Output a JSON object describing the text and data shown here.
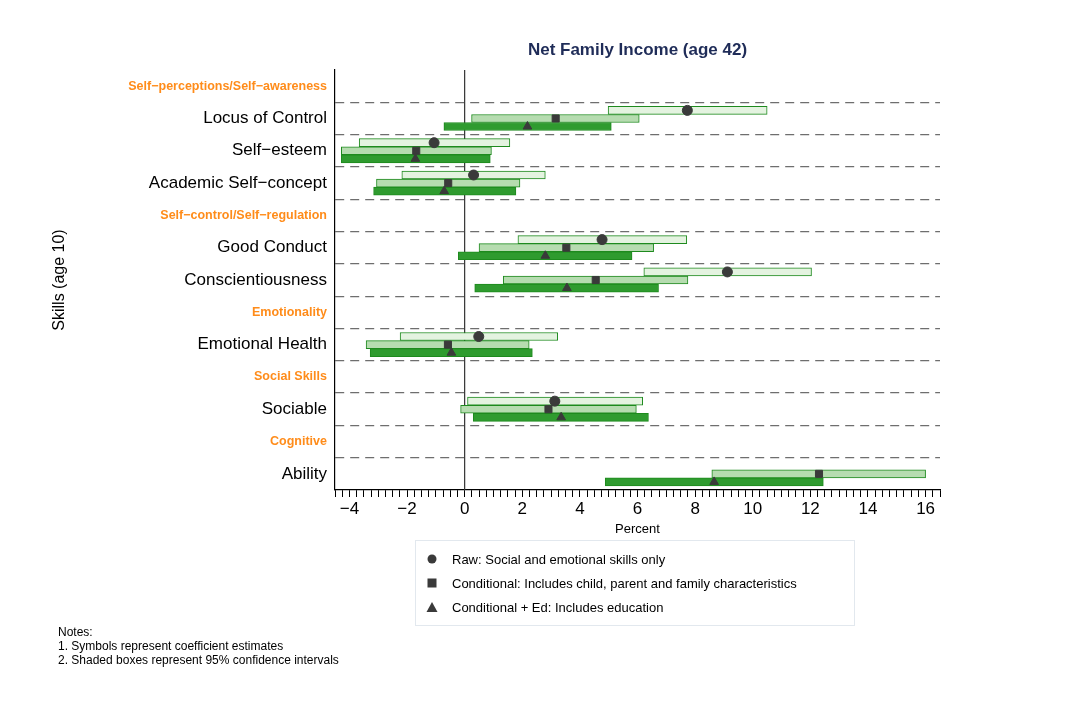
{
  "chart_data": {
    "type": "bar",
    "orientation": "horizontal",
    "title": "Net Family Income (age 42)",
    "xlabel": "Percent",
    "ylabel": "Skills (age 10)",
    "categories": [
      "Self−perceptions/Self−awareness",
      "Locus of Control",
      "Self−esteem",
      "Academic Self−concept",
      "Self−control/Self−regulation",
      "Good Conduct",
      "Conscientiousness",
      "Emotionality",
      "Emotional Health",
      "Social Skills",
      "Sociable",
      "Cognitive",
      "Ability"
    ],
    "series": [
      {
        "type": "bar",
        "color": "#e4f3e0",
        "base": [
          null,
          4.98,
          -3.66,
          -2.18,
          null,
          1.85,
          6.22,
          null,
          -2.24,
          null,
          0.1,
          null,
          null
        ],
        "values": [
          null,
          5.52,
          5.23,
          4.98,
          null,
          5.86,
          5.82,
          null,
          5.47,
          null,
          6.08,
          null,
          null
        ]
      },
      {
        "type": "bar",
        "color": "#b6dcb0",
        "base": [
          null,
          0.24,
          -4.28,
          -3.06,
          null,
          0.5,
          1.34,
          null,
          -3.42,
          null,
          -0.14,
          null,
          8.58
        ],
        "values": [
          null,
          5.82,
          5.21,
          4.98,
          null,
          6.06,
          6.41,
          null,
          5.66,
          null,
          6.1,
          null,
          7.42
        ]
      },
      {
        "type": "bar",
        "color": "#2f9b2f",
        "base": [
          null,
          -0.72,
          -4.28,
          -3.16,
          null,
          -0.22,
          0.35,
          null,
          -3.28,
          null,
          0.3,
          null,
          4.88
        ],
        "values": [
          null,
          5.81,
          5.17,
          4.94,
          null,
          6.03,
          6.38,
          null,
          5.63,
          null,
          6.08,
          null,
          7.57
        ]
      },
      {
        "type": "scatter",
        "name": "Raw: Social and emotional skills only",
        "color": "#3a3a3a",
        "marker": "circle",
        "values": [
          null,
          7.73,
          -1.06,
          0.31,
          null,
          4.77,
          9.12,
          null,
          0.49,
          null,
          3.13,
          null,
          null
        ]
      },
      {
        "type": "scatter",
        "name": "Conditional: Includes child, parent and family characteristics",
        "color": "#3a3a3a",
        "marker": "square",
        "values": [
          null,
          3.16,
          -1.68,
          -0.57,
          null,
          3.53,
          4.55,
          null,
          -0.58,
          null,
          2.91,
          null,
          12.3
        ]
      },
      {
        "type": "scatter",
        "name": "Conditional + Ed: Includes education",
        "color": "#3a3a3a",
        "marker": "triangle",
        "values": [
          null,
          2.18,
          -1.71,
          -0.71,
          null,
          2.8,
          3.55,
          null,
          -0.46,
          null,
          3.35,
          null,
          8.66
        ]
      }
    ],
    "xlim": [
      -4.5,
      16.5
    ],
    "xticks": [
      {
        "value": -4.5,
        "label": null
      },
      {
        "value": -4.25,
        "label": null
      },
      {
        "value": -4,
        "label": "−4"
      },
      {
        "value": -3.75,
        "label": null
      },
      {
        "value": -3.5,
        "label": null
      },
      {
        "value": -3.25,
        "label": null
      },
      {
        "value": -3,
        "label": null
      },
      {
        "value": -2.75,
        "label": null
      },
      {
        "value": -2.5,
        "label": null
      },
      {
        "value": -2.25,
        "label": null
      },
      {
        "value": -2,
        "label": "−2"
      },
      {
        "value": -1.75,
        "label": null
      },
      {
        "value": -1.5,
        "label": null
      },
      {
        "value": -1.25,
        "label": null
      },
      {
        "value": -1,
        "label": null
      },
      {
        "value": -0.75,
        "label": null
      },
      {
        "value": -0.5,
        "label": null
      },
      {
        "value": -0.25,
        "label": null
      },
      0,
      {
        "value": 0.25,
        "label": null
      },
      {
        "value": 0.5,
        "label": null
      },
      {
        "value": 0.75,
        "label": null
      },
      {
        "value": 1,
        "label": null
      },
      {
        "value": 1.25,
        "label": null
      },
      {
        "value": 1.5,
        "label": null
      },
      {
        "value": 1.75,
        "label": null
      },
      2,
      {
        "value": 2.25,
        "label": null
      },
      {
        "value": 2.5,
        "label": null
      },
      {
        "value": 2.75,
        "label": null
      },
      {
        "value": 3,
        "label": null
      },
      {
        "value": 3.25,
        "label": null
      },
      {
        "value": 3.5,
        "label": null
      },
      {
        "value": 3.75,
        "label": null
      },
      4,
      {
        "value": 4.25,
        "label": null
      },
      {
        "value": 4.5,
        "label": null
      },
      {
        "value": 4.75,
        "label": null
      },
      {
        "value": 5,
        "label": null
      },
      {
        "value": 5.25,
        "label": null
      },
      {
        "value": 5.5,
        "label": null
      },
      {
        "value": 5.75,
        "label": null
      },
      6,
      {
        "value": 6.25,
        "label": null
      },
      {
        "value": 6.5,
        "label": null
      },
      {
        "value": 6.75,
        "label": null
      },
      {
        "value": 7,
        "label": null
      },
      {
        "value": 7.25,
        "label": null
      },
      {
        "value": 7.5,
        "label": null
      },
      {
        "value": 7.75,
        "label": null
      },
      8,
      {
        "value": 8.25,
        "label": null
      },
      {
        "value": 8.5,
        "label": null
      },
      {
        "value": 8.75,
        "label": null
      },
      {
        "value": 9,
        "label": null
      },
      {
        "value": 9.25,
        "label": null
      },
      {
        "value": 9.5,
        "label": null
      },
      {
        "value": 9.75,
        "label": null
      },
      10,
      {
        "value": 10.25,
        "label": null
      },
      {
        "value": 10.5,
        "label": null
      },
      {
        "value": 10.75,
        "label": null
      },
      {
        "value": 11,
        "label": null
      },
      {
        "value": 11.25,
        "label": null
      },
      {
        "value": 11.5,
        "label": null
      },
      {
        "value": 11.75,
        "label": null
      },
      12,
      {
        "value": 12.25,
        "label": null
      },
      {
        "value": 12.5,
        "label": null
      },
      {
        "value": 12.75,
        "label": null
      },
      {
        "value": 13,
        "label": null
      },
      {
        "value": 13.25,
        "label": null
      },
      {
        "value": 13.5,
        "label": null
      },
      {
        "value": 13.75,
        "label": null
      },
      14,
      {
        "value": 14.25,
        "label": null
      },
      {
        "value": 14.5,
        "label": null
      },
      {
        "value": 14.75,
        "label": null
      },
      {
        "value": 15,
        "label": null
      },
      {
        "value": 15.25,
        "label": null
      },
      {
        "value": 15.5,
        "label": null
      },
      {
        "value": 15.75,
        "label": null
      },
      16,
      {
        "value": 16.25,
        "label": null
      },
      {
        "value": 16.5,
        "label": null
      }
    ],
    "ref_lines": [
      {
        "axis": "x",
        "value": 0,
        "color": "#333333"
      }
    ],
    "grid": "y",
    "legend": "bottom",
    "annotations": [
      "Notes:",
      "1. Symbols represent coefficient estimates",
      "2. Shaded boxes represent 95% confidence intervals"
    ]
  }
}
